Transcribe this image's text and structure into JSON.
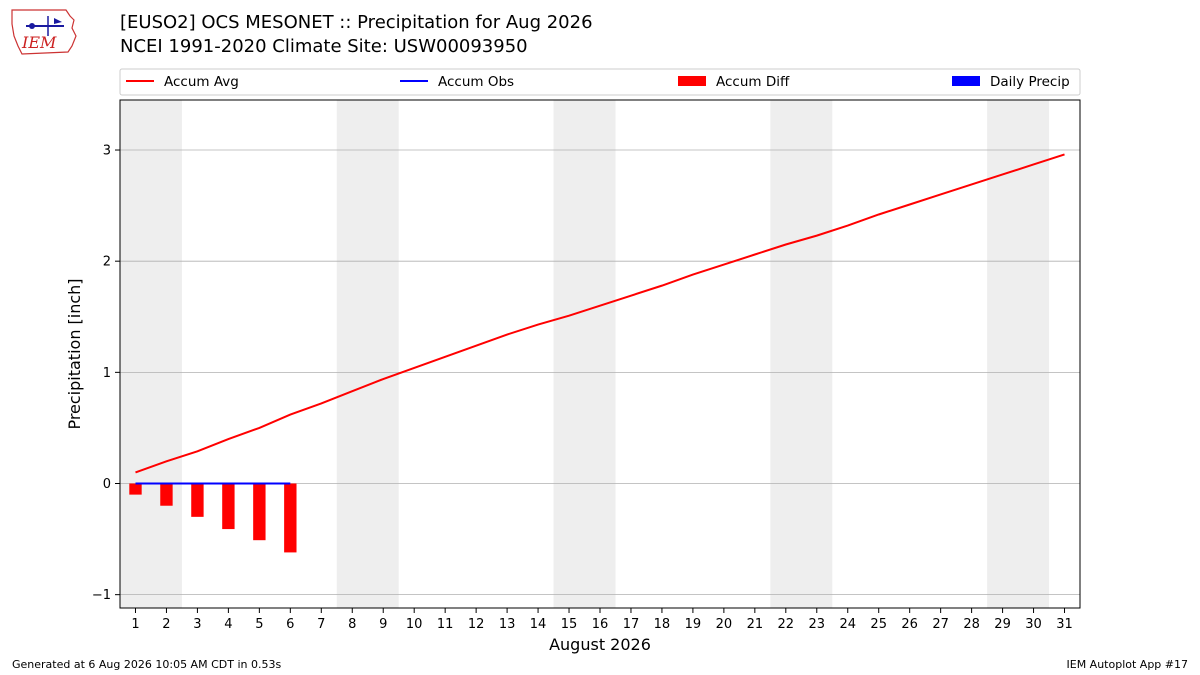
{
  "header": {
    "title_line1": "[EUSO2] OCS MESONET :: Precipitation for Aug 2026",
    "title_line2": "NCEI 1991-2020 Climate Site: USW00093950",
    "logo_text": "IEM"
  },
  "footer": {
    "generated": "Generated at 6 Aug 2026 10:05 AM CDT in 0.53s",
    "app": "IEM Autoplot App #17"
  },
  "colors": {
    "accum_avg": "#ff0000",
    "accum_obs": "#0000ff",
    "accum_diff": "#ff0000",
    "daily_precip": "#0000ff",
    "weekend_shade": "#eeeeee",
    "grid": "#b0b0b0"
  },
  "chart_data": {
    "type": "line",
    "xlabel": "August 2026",
    "ylabel": "Precipitation [inch]",
    "xlim": [
      0.5,
      31.5
    ],
    "ylim": [
      -1.12,
      3.45
    ],
    "x_ticks": [
      1,
      2,
      3,
      4,
      5,
      6,
      7,
      8,
      9,
      10,
      11,
      12,
      13,
      14,
      15,
      16,
      17,
      18,
      19,
      20,
      21,
      22,
      23,
      24,
      25,
      26,
      27,
      28,
      29,
      30,
      31
    ],
    "y_ticks": [
      -1,
      0,
      1,
      2,
      3
    ],
    "grid": "horizontal",
    "legend_position": "top",
    "shaded_weekends": [
      [
        1,
        2
      ],
      [
        8,
        9
      ],
      [
        15,
        16
      ],
      [
        22,
        23
      ],
      [
        29,
        30
      ]
    ],
    "legend": [
      "Accum Avg",
      "Accum Obs",
      "Accum Diff",
      "Daily Precip"
    ],
    "series": [
      {
        "name": "Accum Avg",
        "type": "line",
        "x": [
          1,
          2,
          3,
          4,
          5,
          6,
          7,
          8,
          9,
          10,
          11,
          12,
          13,
          14,
          15,
          16,
          17,
          18,
          19,
          20,
          21,
          22,
          23,
          24,
          25,
          26,
          27,
          28,
          29,
          30,
          31
        ],
        "values": [
          0.1,
          0.2,
          0.29,
          0.4,
          0.5,
          0.62,
          0.72,
          0.83,
          0.94,
          1.04,
          1.14,
          1.24,
          1.34,
          1.43,
          1.51,
          1.6,
          1.69,
          1.78,
          1.88,
          1.97,
          2.06,
          2.15,
          2.23,
          2.32,
          2.42,
          2.51,
          2.6,
          2.69,
          2.78,
          2.87,
          2.96
        ]
      },
      {
        "name": "Accum Obs",
        "type": "line",
        "x": [
          1,
          2,
          3,
          4,
          5,
          6
        ],
        "values": [
          0,
          0,
          0,
          0,
          0,
          0
        ]
      },
      {
        "name": "Accum Diff",
        "type": "bar",
        "x": [
          1,
          2,
          3,
          4,
          5,
          6
        ],
        "values": [
          -0.1,
          -0.2,
          -0.3,
          -0.41,
          -0.51,
          -0.62
        ]
      },
      {
        "name": "Daily Precip",
        "type": "bar",
        "x": [
          1,
          2,
          3,
          4,
          5,
          6
        ],
        "values": [
          0,
          0,
          0,
          0,
          0,
          0
        ]
      }
    ]
  }
}
